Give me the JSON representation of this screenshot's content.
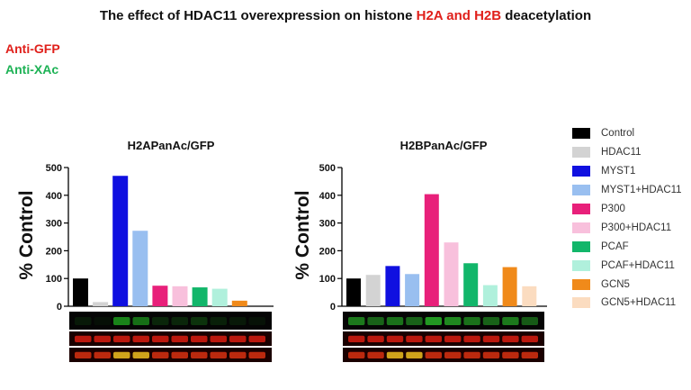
{
  "title": {
    "prefix": "The effect of HDAC11 overexpression on histone ",
    "highlight": "H2A and H2B",
    "suffix": " deacetylation"
  },
  "tags": [
    "Anti-GFP",
    "Anti-XAc"
  ],
  "colors": {
    "red": "#e0201b",
    "green": "#1db255",
    "series": [
      "#000000",
      "#d3d3d3",
      "#1010e0",
      "#99bff0",
      "#e8207a",
      "#f8c0dc",
      "#12b66a",
      "#b0f0dc",
      "#f08a1a",
      "#fbdcc0"
    ]
  },
  "legend": [
    "Control",
    "HDAC11",
    "MYST1",
    "MYST1+HDAC11",
    "P300",
    "P300+HDAC11",
    "PCAF",
    "PCAF+HDAC11",
    "GCN5",
    "GCN5+HDAC11"
  ],
  "chart_data": [
    {
      "type": "bar",
      "title": "H2APanAc/GFP",
      "ylabel": "% Control",
      "ylim": [
        0,
        500
      ],
      "yticks": [
        0,
        100,
        200,
        300,
        400,
        500
      ],
      "categories": [
        "Control",
        "HDAC11",
        "MYST1",
        "MYST1+HDAC11",
        "P300",
        "P300+HDAC11",
        "PCAF",
        "PCAF+HDAC11",
        "GCN5",
        "GCN5+HDAC11"
      ],
      "values": [
        100,
        15,
        470,
        272,
        74,
        72,
        68,
        63,
        20,
        0
      ]
    },
    {
      "type": "bar",
      "title": "H2BPanAc/GFP",
      "ylabel": "% Control",
      "ylim": [
        0,
        500
      ],
      "yticks": [
        0,
        100,
        200,
        300,
        400,
        500
      ],
      "categories": [
        "Control",
        "HDAC11",
        "MYST1",
        "MYST1+HDAC11",
        "P300",
        "P300+HDAC11",
        "PCAF",
        "PCAF+HDAC11",
        "GCN5",
        "GCN5+HDAC11"
      ],
      "values": [
        100,
        113,
        145,
        116,
        404,
        230,
        155,
        76,
        141,
        72
      ]
    }
  ]
}
